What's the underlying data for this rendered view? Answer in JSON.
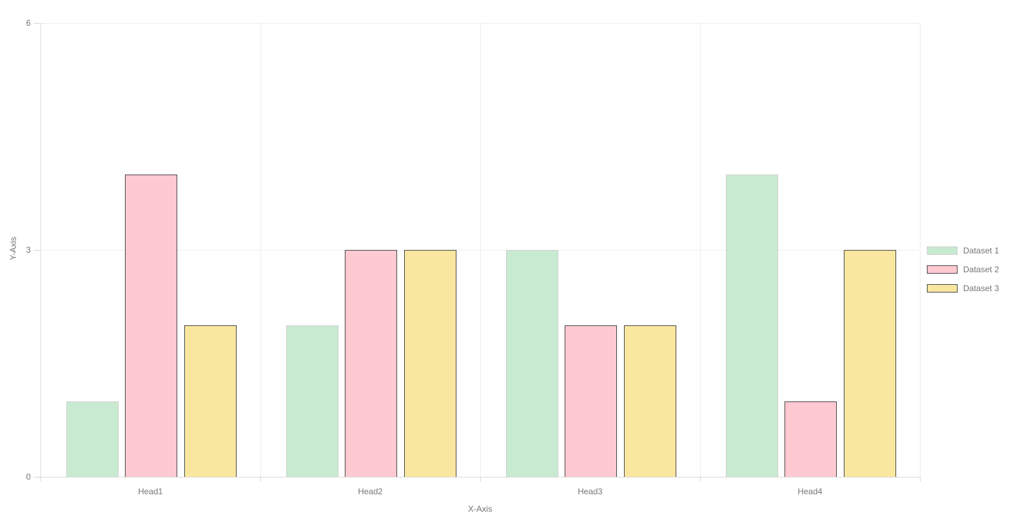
{
  "chart_data": {
    "type": "bar",
    "title": "",
    "xlabel": "X-Axis",
    "ylabel": "Y-Axis",
    "categories": [
      "Head1",
      "Head2",
      "Head3",
      "Head4"
    ],
    "series": [
      {
        "name": "Dataset 1",
        "values": [
          1,
          2,
          3,
          4
        ],
        "fill": "#c8ead0",
        "border": "#d2d2d2"
      },
      {
        "name": "Dataset 2",
        "values": [
          4,
          3,
          2,
          1
        ],
        "fill": "#fec9d1",
        "border": "#4f4f4f"
      },
      {
        "name": "Dataset 3",
        "values": [
          2,
          3,
          2,
          3
        ],
        "fill": "#fae79f",
        "border": "#4f4f4f"
      }
    ],
    "ylim": [
      0,
      6
    ],
    "y_ticks": [
      0,
      3,
      6
    ],
    "grid": true,
    "legend_position": "right"
  },
  "palette": {
    "background": "#ffffff",
    "grid_line": "#efefef",
    "axis_line": "#dcdcdc",
    "text": "#757575"
  }
}
